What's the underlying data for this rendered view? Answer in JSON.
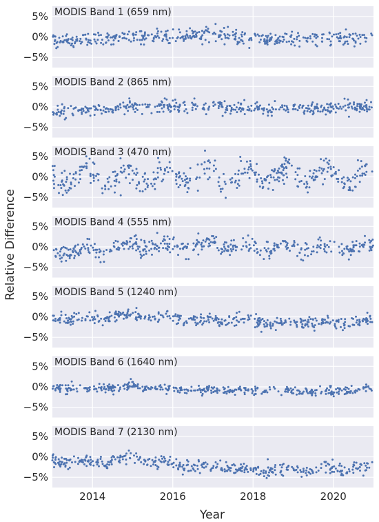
{
  "figure": {
    "ylabel": "Relative Difference",
    "xlabel": "Year"
  },
  "chart_data": {
    "type": "scatter",
    "x_axis": {
      "label": "Year",
      "range": [
        2013.0,
        2021.0
      ],
      "ticks": [
        2014,
        2016,
        2018,
        2020
      ],
      "tick_labels": [
        "2014",
        "2016",
        "2018",
        "2020"
      ]
    },
    "y_axis": {
      "label": "Relative Difference",
      "unit": "%",
      "range": [
        -7.5,
        7.5
      ],
      "ticks": [
        -5,
        0,
        5
      ],
      "tick_labels": [
        "−5%",
        "0%",
        "5%"
      ]
    },
    "grid": true,
    "marker_color": "#4c72b0",
    "panel_background": "#eaeaf2",
    "panels": [
      {
        "title": "MODIS Band 1 (659 nm)",
        "trend_x": [
          2013,
          2014,
          2015,
          2016,
          2017,
          2018,
          2019,
          2020,
          2021
        ],
        "trend_y": [
          -1.0,
          -0.8,
          0.0,
          0.2,
          0.3,
          -0.4,
          -0.6,
          -0.2,
          -0.3
        ],
        "amplitude": 0.0,
        "spread": 0.9
      },
      {
        "title": "MODIS Band 2 (865 nm)",
        "trend_x": [
          2013,
          2014,
          2015,
          2016,
          2017,
          2018,
          2019,
          2020,
          2021
        ],
        "trend_y": [
          -1.0,
          -0.8,
          0.2,
          0.3,
          0.3,
          -0.4,
          -0.5,
          -0.2,
          0.0
        ],
        "amplitude": 0.0,
        "spread": 0.8
      },
      {
        "title": "MODIS Band 3 (470 nm)",
        "trend_x": [
          2013,
          2014,
          2015,
          2016,
          2017,
          2018,
          2019,
          2020,
          2021
        ],
        "trend_y": [
          -0.5,
          0.0,
          0.0,
          0.0,
          0.5,
          0.5,
          0.5,
          0.5,
          0.3
        ],
        "amplitude": 2.2,
        "spread": 1.6
      },
      {
        "title": "MODIS Band 4 (555 nm)",
        "trend_x": [
          2013,
          2014,
          2015,
          2016,
          2017,
          2018,
          2019,
          2020,
          2021
        ],
        "trend_y": [
          -1.2,
          -1.0,
          0.2,
          0.2,
          0.5,
          0.0,
          -0.4,
          -0.2,
          0.0
        ],
        "amplitude": 1.0,
        "spread": 1.0
      },
      {
        "title": "MODIS Band 5 (1240 nm)",
        "trend_x": [
          2013,
          2014,
          2015,
          2016,
          2017,
          2018,
          2019,
          2020,
          2021
        ],
        "trend_y": [
          -0.5,
          -0.4,
          0.5,
          -0.3,
          -0.8,
          -1.0,
          -1.6,
          -1.2,
          -0.8
        ],
        "amplitude": 0.4,
        "spread": 0.7
      },
      {
        "title": "MODIS Band 6 (1640 nm)",
        "trend_x": [
          2013,
          2014,
          2015,
          2016,
          2017,
          2018,
          2019,
          2020,
          2021
        ],
        "trend_y": [
          -0.3,
          -0.4,
          0.2,
          -0.5,
          -0.8,
          -1.0,
          -1.2,
          -1.0,
          -0.7
        ],
        "amplitude": 0.2,
        "spread": 0.5
      },
      {
        "title": "MODIS Band 7 (2130 nm)",
        "trend_x": [
          2013,
          2014,
          2015,
          2016,
          2017,
          2018,
          2019,
          2020,
          2021
        ],
        "trend_y": [
          -0.8,
          -1.2,
          -0.5,
          -2.0,
          -2.5,
          -3.0,
          -3.5,
          -2.8,
          -2.5
        ],
        "amplitude": 0.5,
        "spread": 0.8
      }
    ]
  }
}
